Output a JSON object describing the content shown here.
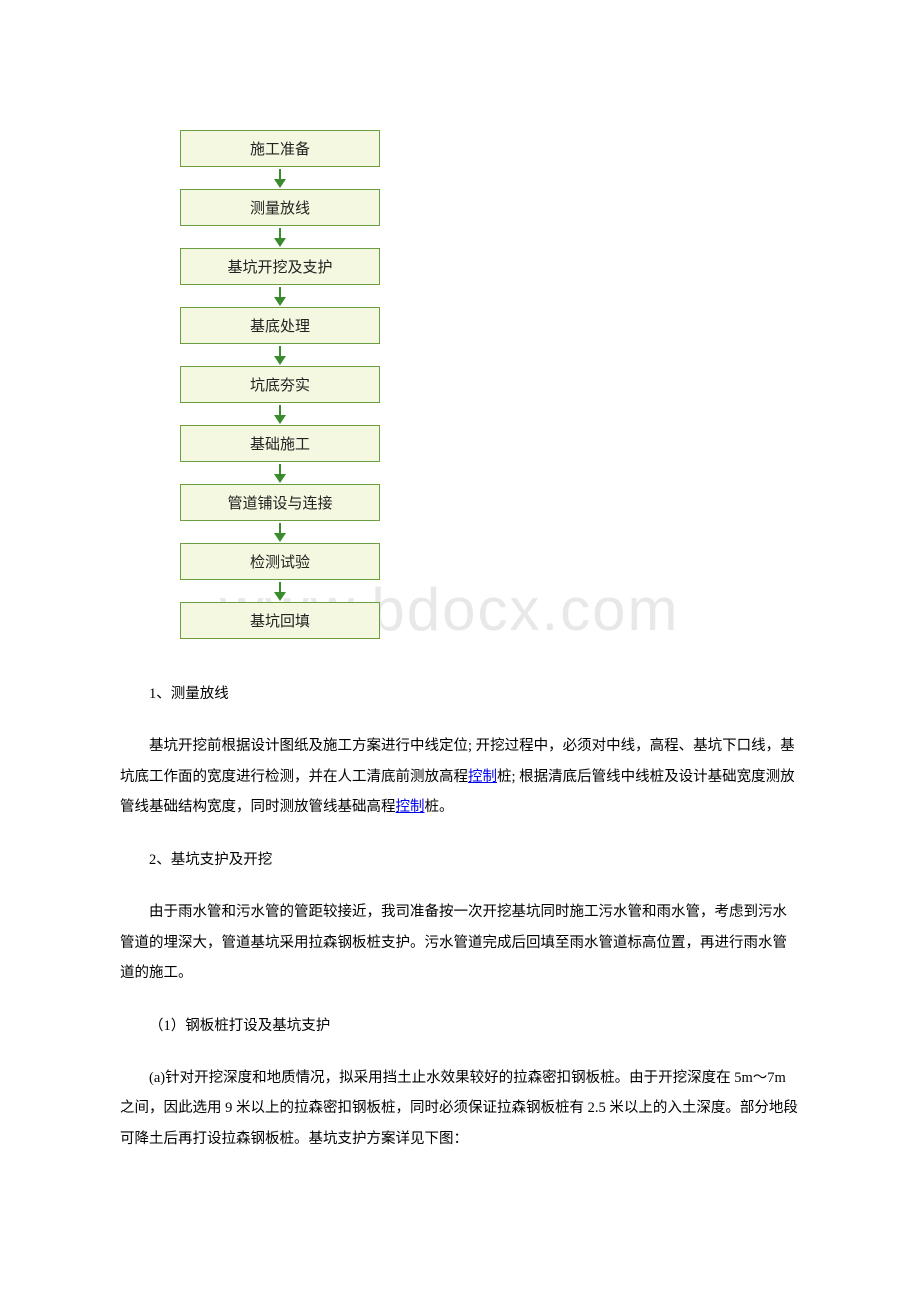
{
  "flowchart": {
    "nodes": [
      "施工准备",
      "测量放线",
      "基坑开挖及支护",
      "基底处理",
      "坑底夯实",
      "基础施工",
      "管道铺设与连接",
      "检测试验",
      "基坑回填"
    ],
    "box_border_color": "#6a9e3e",
    "box_bg_color": "#f5f8e0",
    "arrow_color": "#3a8a2e",
    "font_family": "SimHei",
    "font_size": 15
  },
  "watermark": "www.bdocx.com",
  "sections": {
    "s1": {
      "heading": "1、测量放线",
      "p1_a": "基坑开挖前根据设计图纸及施工方案进行中线定位; 开挖过程中，必须对中线，高程、基坑下口线，基坑底工作面的宽度进行检测，并在人工清底前测放高程",
      "link1": "控制",
      "p1_b": "桩; 根据清底后管线中线桩及设计基础宽度测放管线基础结构宽度，同时测放管线基础高程",
      "link2": "控制",
      "p1_c": "桩。"
    },
    "s2": {
      "heading": "2、基坑支护及开挖",
      "p1": "由于雨水管和污水管的管距较接近，我司准备按一次开挖基坑同时施工污水管和雨水管，考虑到污水管道的埋深大，管道基坑采用拉森钢板桩支护。污水管道完成后回填至雨水管道标高位置，再进行雨水管道的施工。",
      "sub1_heading": "（1）钢板桩打设及基坑支护",
      "sub1_p1": "(a)针对开挖深度和地质情况，拟采用挡土止水效果较好的拉森密扣钢板桩。由于开挖深度在 5m～7m 之间，因此选用 9 米以上的拉森密扣钢板桩，同时必须保证拉森钢板桩有 2.5 米以上的入土深度。部分地段可降土后再打设拉森钢板桩。基坑支护方案详见下图："
    }
  },
  "colors": {
    "text": "#000000",
    "link": "#0000ee",
    "watermark": "#e8e8e8",
    "background": "#ffffff"
  },
  "typography": {
    "body_font": "SimSun",
    "body_size": 14.5,
    "line_height": 2.1
  }
}
